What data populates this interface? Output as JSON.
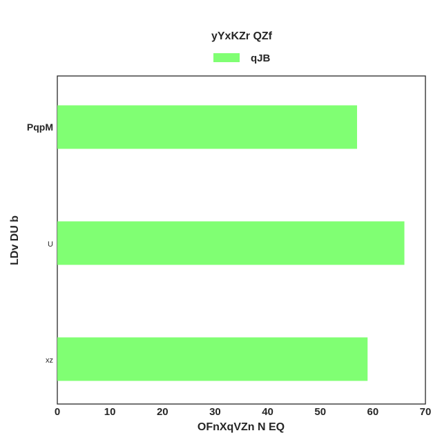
{
  "chart_data": {
    "type": "bar",
    "orientation": "horizontal",
    "title": "yYxKZr QZf",
    "xlabel": "OFnXqVZn N EQ",
    "ylabel": "LDv DU b",
    "categories": [
      "PqpM",
      "U",
      "xz"
    ],
    "series": [
      {
        "name": "qJB",
        "values": [
          57,
          66,
          59
        ],
        "color": "#80ff73"
      }
    ],
    "xlim": [
      0,
      70
    ],
    "xticks": [
      "0",
      "10",
      "20",
      "30",
      "40",
      "50",
      "60",
      "70"
    ],
    "grid": false,
    "legend": "top-center"
  }
}
